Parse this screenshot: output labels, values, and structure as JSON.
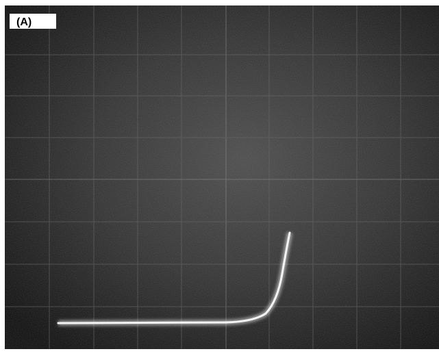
{
  "panel_label": "(A)"
}
